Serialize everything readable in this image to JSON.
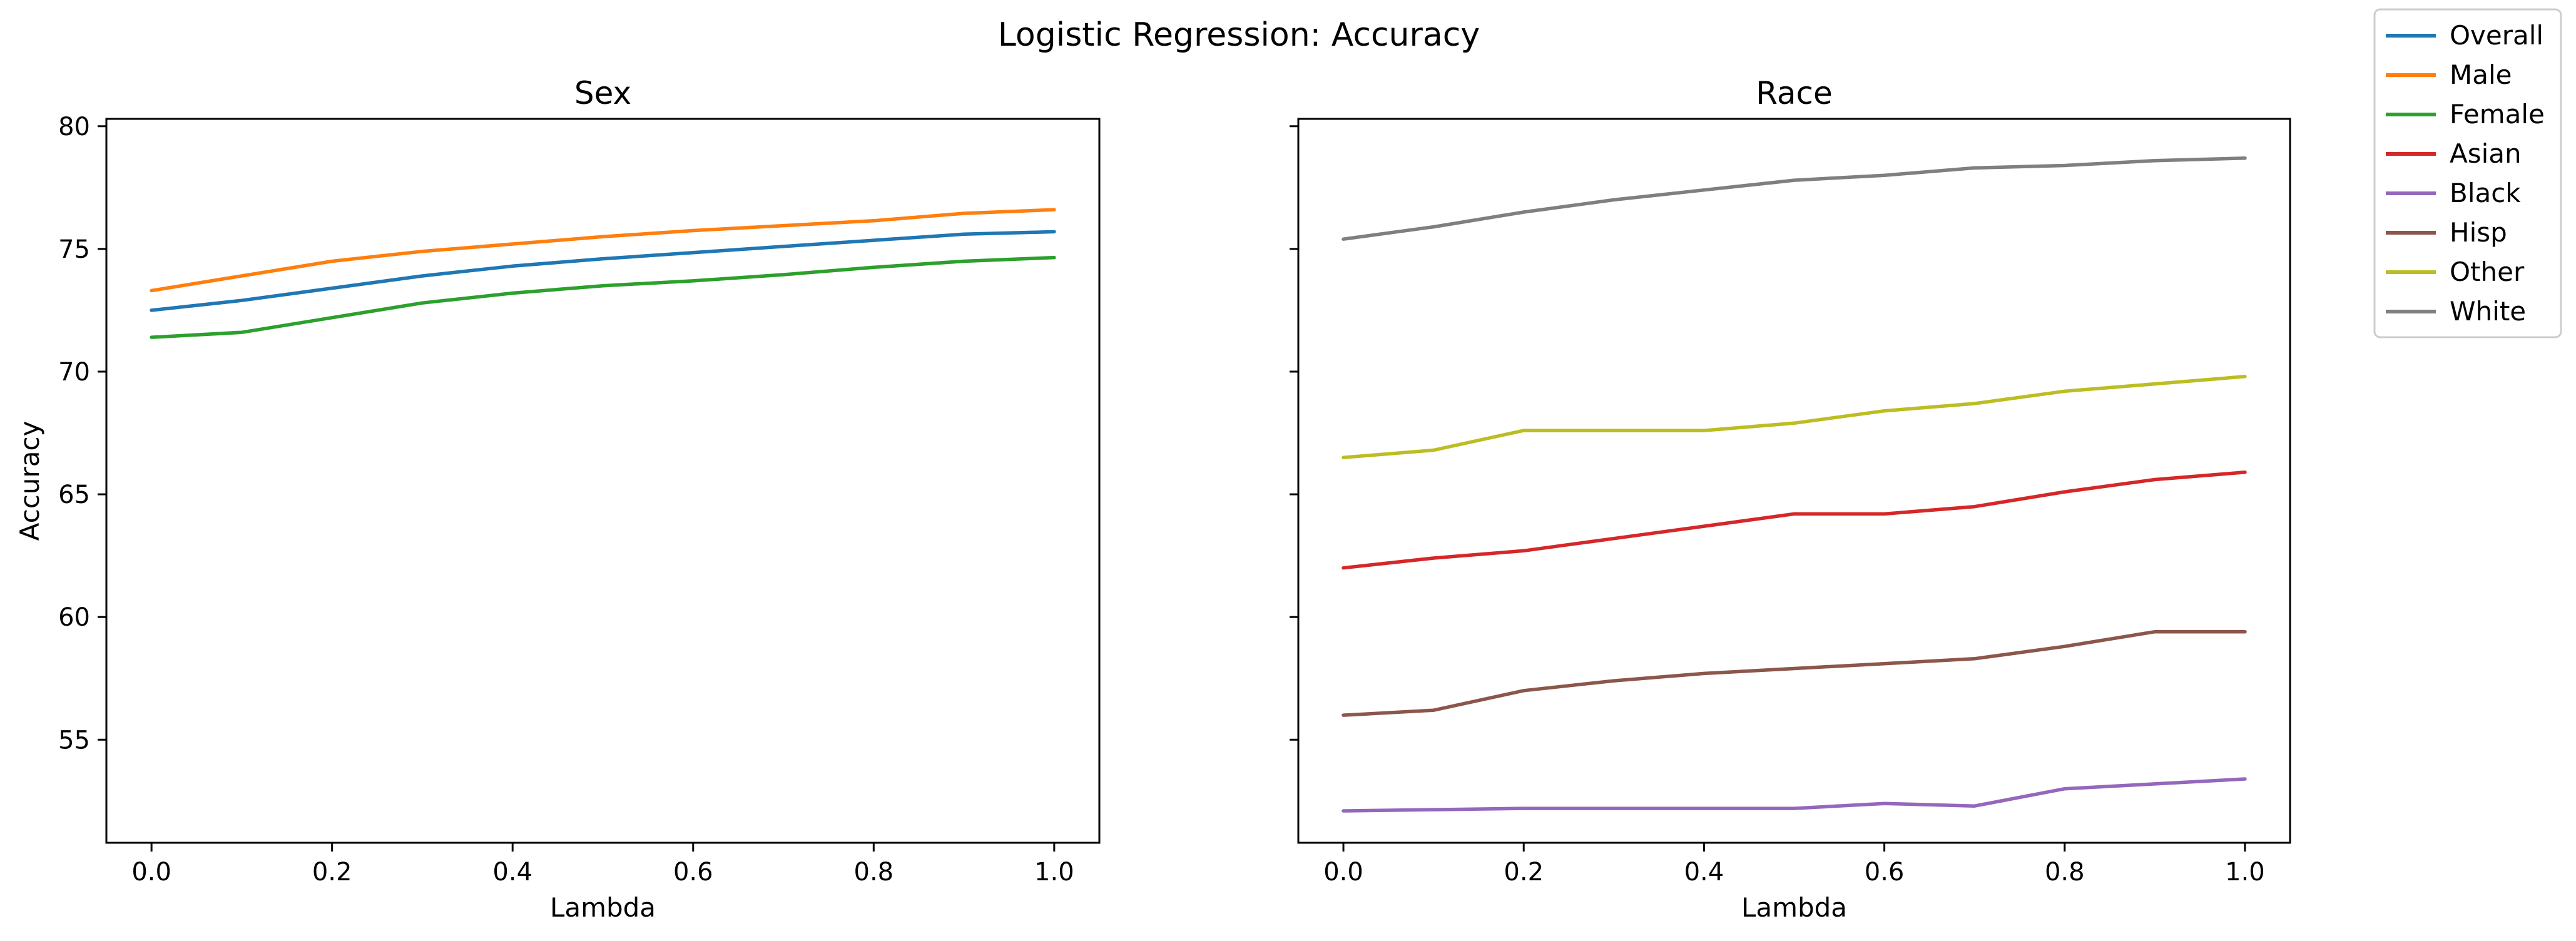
{
  "figure": {
    "title": "Logistic Regression: Accuracy"
  },
  "legend": {
    "placement": "outside-top-right",
    "entries": [
      {
        "name": "Overall",
        "color": "#1f77b4"
      },
      {
        "name": "Male",
        "color": "#ff7f0e"
      },
      {
        "name": "Female",
        "color": "#2ca02c"
      },
      {
        "name": "Asian",
        "color": "#d62728"
      },
      {
        "name": "Black",
        "color": "#9467bd"
      },
      {
        "name": "Hisp",
        "color": "#8c564b"
      },
      {
        "name": "Other",
        "color": "#bcbd22"
      },
      {
        "name": "White",
        "color": "#7f7f7f"
      }
    ]
  },
  "chart_data": [
    {
      "type": "line",
      "title": "Sex",
      "xlabel": "Lambda",
      "ylabel": "Accuracy",
      "xlim": [
        -0.05,
        1.05
      ],
      "ylim": [
        50.8,
        80.3
      ],
      "xticks": [
        0.0,
        0.2,
        0.4,
        0.6,
        0.8,
        1.0
      ],
      "xtick_labels": [
        "0.0",
        "0.2",
        "0.4",
        "0.6",
        "0.8",
        "1.0"
      ],
      "yticks": [
        55,
        60,
        65,
        70,
        75,
        80
      ],
      "ytick_labels": [
        "55",
        "60",
        "65",
        "70",
        "75",
        "80"
      ],
      "grid": false,
      "x": [
        0.0,
        0.1,
        0.2,
        0.3,
        0.4,
        0.5,
        0.6,
        0.7,
        0.8,
        0.9,
        1.0
      ],
      "series": [
        {
          "name": "Overall",
          "color": "#1f77b4",
          "values": [
            72.5,
            72.9,
            73.4,
            73.9,
            74.3,
            74.6,
            74.85,
            75.1,
            75.35,
            75.6,
            75.7
          ]
        },
        {
          "name": "Male",
          "color": "#ff7f0e",
          "values": [
            73.3,
            73.9,
            74.5,
            74.9,
            75.2,
            75.5,
            75.75,
            75.95,
            76.15,
            76.45,
            76.6
          ]
        },
        {
          "name": "Female",
          "color": "#2ca02c",
          "values": [
            71.4,
            71.6,
            72.2,
            72.8,
            73.2,
            73.5,
            73.7,
            73.95,
            74.25,
            74.5,
            74.65
          ]
        }
      ]
    },
    {
      "type": "line",
      "title": "Race",
      "xlabel": "Lambda",
      "ylabel": "",
      "xlim": [
        -0.05,
        1.05
      ],
      "ylim": [
        50.8,
        80.3
      ],
      "xticks": [
        0.0,
        0.2,
        0.4,
        0.6,
        0.8,
        1.0
      ],
      "xtick_labels": [
        "0.0",
        "0.2",
        "0.4",
        "0.6",
        "0.8",
        "1.0"
      ],
      "yticks": [
        55,
        60,
        65,
        70,
        75,
        80
      ],
      "ytick_labels": [],
      "grid": false,
      "x": [
        0.0,
        0.1,
        0.2,
        0.3,
        0.4,
        0.5,
        0.6,
        0.7,
        0.8,
        0.9,
        1.0
      ],
      "series": [
        {
          "name": "Asian",
          "color": "#d62728",
          "values": [
            62.0,
            62.4,
            62.7,
            63.2,
            63.7,
            64.2,
            64.2,
            64.5,
            65.1,
            65.6,
            65.9
          ]
        },
        {
          "name": "Black",
          "color": "#9467bd",
          "values": [
            52.1,
            52.15,
            52.2,
            52.2,
            52.2,
            52.2,
            52.4,
            52.3,
            53.0,
            53.2,
            53.4
          ]
        },
        {
          "name": "Hisp",
          "color": "#8c564b",
          "values": [
            56.0,
            56.2,
            57.0,
            57.4,
            57.7,
            57.9,
            58.1,
            58.3,
            58.8,
            59.4,
            59.4
          ]
        },
        {
          "name": "Other",
          "color": "#bcbd22",
          "values": [
            66.5,
            66.8,
            67.6,
            67.6,
            67.6,
            67.9,
            68.4,
            68.7,
            69.2,
            69.5,
            69.8
          ]
        },
        {
          "name": "White",
          "color": "#7f7f7f",
          "values": [
            75.4,
            75.9,
            76.5,
            77.0,
            77.4,
            77.8,
            78.0,
            78.3,
            78.4,
            78.6,
            78.7
          ]
        }
      ]
    }
  ]
}
